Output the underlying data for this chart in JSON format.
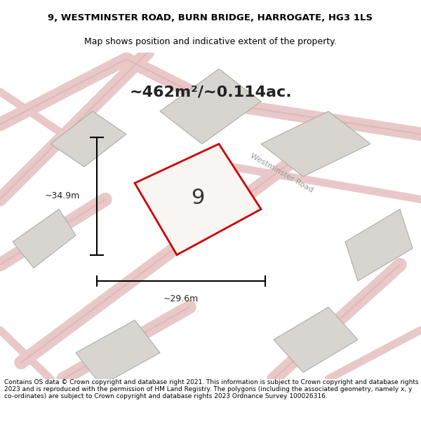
{
  "title_line1": "9, WESTMINSTER ROAD, BURN BRIDGE, HARROGATE, HG3 1LS",
  "title_line2": "Map shows position and indicative extent of the property.",
  "area_text": "~462m²/~0.114ac.",
  "measurement_width": "~29.6m",
  "measurement_height": "~34.9m",
  "number_label": "9",
  "road_label": "Westminster Road",
  "footer_text": "Contains OS data © Crown copyright and database right 2021. This information is subject to Crown copyright and database rights 2023 and is reproduced with the permission of HM Land Registry. The polygons (including the associated geometry, namely x, y co-ordinates) are subject to Crown copyright and database rights 2023 Ordnance Survey 100026316.",
  "bg_color": "#f5f4f0",
  "map_bg": "#f0ede8",
  "property_fill": "#f5f4f0",
  "property_edge": "#cc0000",
  "road_color": "#e8c8c8",
  "other_parcel_color": "#d8d5d0",
  "other_parcel_edge": "#c8c5c0",
  "dim_line_color": "#000000",
  "road_label_color": "#888888"
}
